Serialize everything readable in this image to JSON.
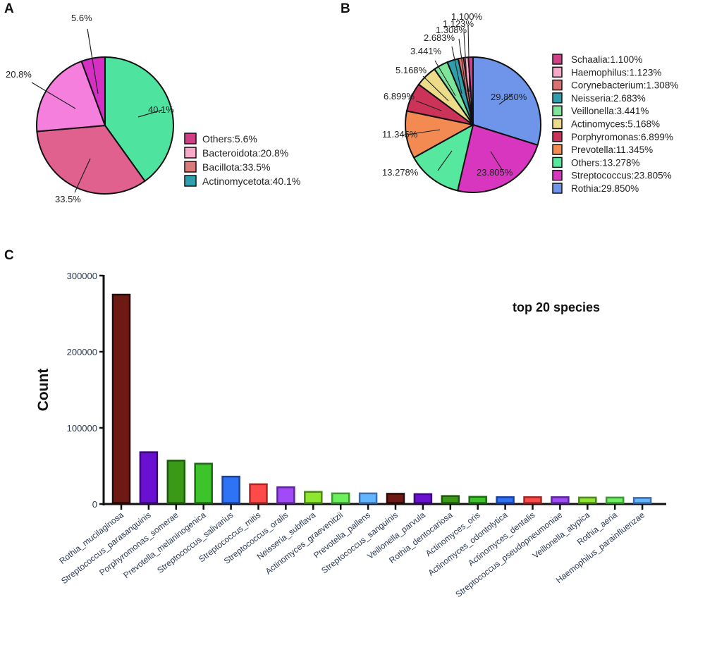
{
  "panels": {
    "a": "A",
    "b": "B",
    "c": "C"
  },
  "chart_data": [
    {
      "type": "pie",
      "panel": "A",
      "title": "",
      "slices": [
        {
          "label": "Actinomycetota",
          "value": 40.1,
          "display": "40.1%",
          "color": "#4fe3a0",
          "legend_color": "#2f9fae"
        },
        {
          "label": "Bacillota",
          "value": 33.5,
          "display": "33.5%",
          "color": "#e0608e",
          "legend_color": "#db7a7a"
        },
        {
          "label": "Bacteroidota",
          "value": 20.8,
          "display": "20.8%",
          "color": "#f57fdc",
          "legend_color": "#f6a9c8"
        },
        {
          "label": "Others",
          "value": 5.6,
          "display": "5.6%",
          "color": "#d62fc4",
          "legend_color": "#cf3f86"
        }
      ],
      "legend": [
        "Others:5.6%",
        "Bacteroidota:20.8%",
        "Bacillota:33.5%",
        "Actinomycetota:40.1%"
      ],
      "legend_colors": [
        "#cf3f86",
        "#f6a9c8",
        "#db7a7a",
        "#2f9fae"
      ],
      "legend_position": "right"
    },
    {
      "type": "pie",
      "panel": "B",
      "title": "",
      "slices": [
        {
          "label": "Rothia",
          "value": 29.85,
          "display": "29.850%",
          "color": "#6f95ea"
        },
        {
          "label": "Streptococcus",
          "value": 23.805,
          "display": "23.805%",
          "color": "#d936c0"
        },
        {
          "label": "Others",
          "value": 13.278,
          "display": "13.278%",
          "color": "#55e89e"
        },
        {
          "label": "Prevotella",
          "value": 11.345,
          "display": "11.345%",
          "color": "#f28a52"
        },
        {
          "label": "Porphyromonas",
          "value": 6.899,
          "display": "6.899%",
          "color": "#cc3358"
        },
        {
          "label": "Actinomyces",
          "value": 5.168,
          "display": "5.168%",
          "color": "#ecdc8a"
        },
        {
          "label": "Veillonella",
          "value": 3.441,
          "display": "3.441%",
          "color": "#7fe59a"
        },
        {
          "label": "Neisseria",
          "value": 2.683,
          "display": "2.683%",
          "color": "#2f9fae"
        },
        {
          "label": "Corynebacterium",
          "value": 1.308,
          "display": "1.308%",
          "color": "#db7070"
        },
        {
          "label": "Haemophilus",
          "value": 1.123,
          "display": "1.123%",
          "color": "#f6a9c8"
        },
        {
          "label": "Schaalia",
          "value": 1.1,
          "display": "1.100%",
          "color": "#d43f8a"
        }
      ],
      "legend": [
        "Schaalia:1.100%",
        "Haemophilus:1.123%",
        "Corynebacterium:1.308%",
        "Neisseria:2.683%",
        "Veillonella:3.441%",
        "Actinomyces:5.168%",
        "Porphyromonas:6.899%",
        "Prevotella:11.345%",
        "Others:13.278%",
        "Streptococcus:23.805%",
        "Rothia:29.850%"
      ],
      "legend_position": "right"
    },
    {
      "type": "bar",
      "panel": "C",
      "title": "top 20 species",
      "xlabel": "",
      "ylabel": "Count",
      "ylim": [
        0,
        300000
      ],
      "yticks": [
        0,
        100000,
        200000,
        300000
      ],
      "ytick_labels": [
        "0",
        "100000",
        "200000",
        "300000"
      ],
      "grid": false,
      "categories": [
        "Rothia_mucilaginosa",
        "Streptococcus_parasanguinis",
        "Porphyromonas_somerae",
        "Prevotella_melaninogenica",
        "Streptococcus_salivarius",
        "Streptococcus_mitis",
        "Streptococcus_oralis",
        "Neisseria_subflava",
        "Actinomyces_graevenitzii",
        "Prevotella_pallens",
        "Streptococcus_sanguinis",
        "Veillonella_parvula",
        "Rothia_dentocariosa",
        "Actinomyces_oris",
        "Actinomyces_odontolytica",
        "Actinomyces_dentalis",
        "Streptococcus_pseudopneumoniae",
        "Veillonella_atypica",
        "Rothia_aeria",
        "Haemophilus_parainfluenzae"
      ],
      "values": [
        275000,
        68000,
        57000,
        53000,
        36000,
        26000,
        22000,
        16000,
        14000,
        14000,
        13500,
        13000,
        10500,
        9500,
        9000,
        9000,
        9000,
        8500,
        8500,
        8000
      ],
      "colors": [
        "#6e1a14",
        "#6a10d0",
        "#3a9a18",
        "#3cc42a",
        "#2e72f5",
        "#ff4a4a",
        "#a24af7",
        "#8ee62e",
        "#6df05e",
        "#62b5ff",
        "#6e1a14",
        "#6a10d0",
        "#3a9a18",
        "#3cc42a",
        "#2e72f5",
        "#ff4a4a",
        "#a24af7",
        "#8ee62e",
        "#6df05e",
        "#62b5ff"
      ],
      "edge_colors": [
        "#2a0a08",
        "#3a0878",
        "#1e5a0c",
        "#1e6a14",
        "#1a40a0",
        "#a02828",
        "#5a2898",
        "#4a8a14",
        "#3a9a30",
        "#3a70b0",
        "#2a0a08",
        "#3a0878",
        "#1e5a0c",
        "#1e6a14",
        "#1a40a0",
        "#a02828",
        "#5a2898",
        "#4a8a14",
        "#3a9a30",
        "#3a70b0"
      ]
    }
  ]
}
